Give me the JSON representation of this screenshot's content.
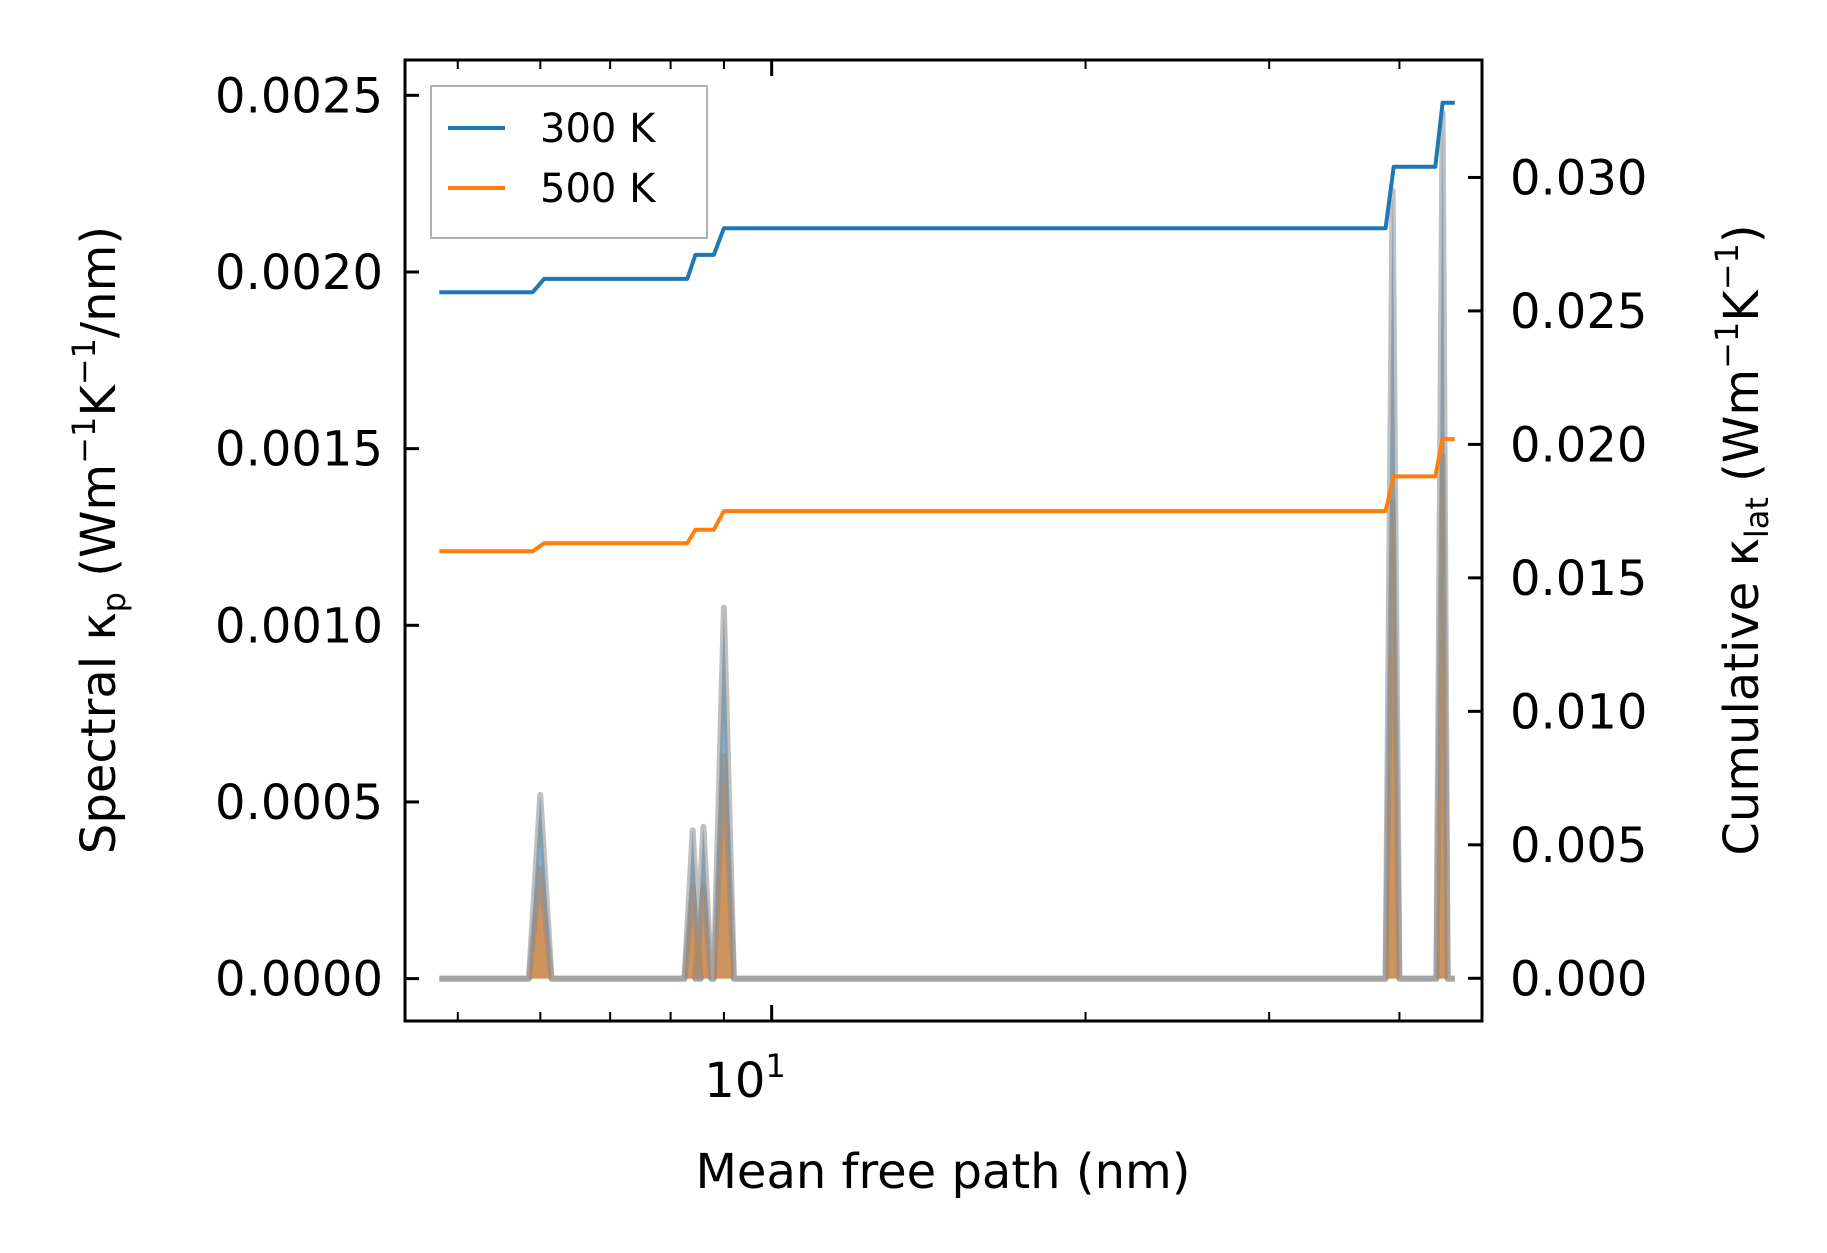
{
  "chart_data": {
    "type": "line",
    "x_scale": "log",
    "xlim": [
      4.45,
      48
    ],
    "x_tick_label": {
      "base": "10",
      "exp": "1"
    },
    "x_major_tick": 10,
    "x_minor_ticks": [
      5,
      6,
      7,
      8,
      9,
      20,
      30,
      40
    ],
    "xlabel": "Mean free path (nm)",
    "ylabel_left": {
      "main": "Spectral κ",
      "sub": "p",
      "unit_open": " (Wm",
      "sup1": "−1",
      "mid": "K",
      "sup2": "−1",
      "unit_close": "/nm)"
    },
    "ylabel_right": {
      "main": "Cumulative κ",
      "sub": "lat",
      "unit_open": " (Wm",
      "sup1": "−1",
      "mid": "K",
      "sup2": "−1",
      "unit_close": ")"
    },
    "ylim_left": [
      -0.00012,
      0.0026
    ],
    "ylim_right": [
      -0.0016,
      0.0344
    ],
    "left_ticks": [
      "0.0000",
      "0.0005",
      "0.0010",
      "0.0015",
      "0.0020",
      "0.0025"
    ],
    "right_ticks": [
      "0.000",
      "0.005",
      "0.010",
      "0.015",
      "0.020",
      "0.025",
      "0.030"
    ],
    "legend": {
      "placement": "upper-left"
    },
    "colors": {
      "300": "#1f77b4",
      "500": "#ff7f0e",
      "spectral_outline": "#8c8c8c"
    },
    "spectral_peaks": [
      {
        "x0": 5.85,
        "xp": 6.0,
        "x1": 6.15,
        "v300": 0.00052,
        "v500": 0.00031
      },
      {
        "x0": 8.25,
        "xp": 8.4,
        "x1": 8.55,
        "v300": 0.00042,
        "v500": 0.00026
      },
      {
        "x0": 8.45,
        "xp": 8.6,
        "x1": 8.75,
        "v300": 0.00043,
        "v500": 0.00026
      },
      {
        "x0": 8.8,
        "xp": 9.0,
        "x1": 9.2,
        "v300": 0.00105,
        "v500": 0.00063
      },
      {
        "x0": 38.8,
        "xp": 39.4,
        "x1": 40.0,
        "v300": 0.00223,
        "v500": 0.00135
      },
      {
        "x0": 43.4,
        "xp": 44.0,
        "x1": 44.5,
        "v300": 0.00245,
        "v500": 0.00148
      }
    ],
    "series": [
      {
        "name": "300 K",
        "key": "300",
        "cumulative": {
          "x": [
            4.8,
            5.9,
            6.05,
            8.3,
            8.45,
            8.8,
            9.0,
            38.8,
            39.5,
            43.3,
            44.0,
            45.2
          ],
          "y": [
            0.0257,
            0.0257,
            0.0262,
            0.0262,
            0.0271,
            0.0271,
            0.0281,
            0.0281,
            0.0304,
            0.0304,
            0.0328,
            0.0328
          ]
        }
      },
      {
        "name": "500 K",
        "key": "500",
        "cumulative": {
          "x": [
            4.8,
            5.9,
            6.05,
            8.3,
            8.45,
            8.8,
            9.0,
            38.8,
            39.5,
            43.3,
            44.0,
            45.2
          ],
          "y": [
            0.016,
            0.016,
            0.0163,
            0.0163,
            0.0168,
            0.0168,
            0.0175,
            0.0175,
            0.0188,
            0.0188,
            0.0202,
            0.0202
          ]
        }
      }
    ]
  }
}
